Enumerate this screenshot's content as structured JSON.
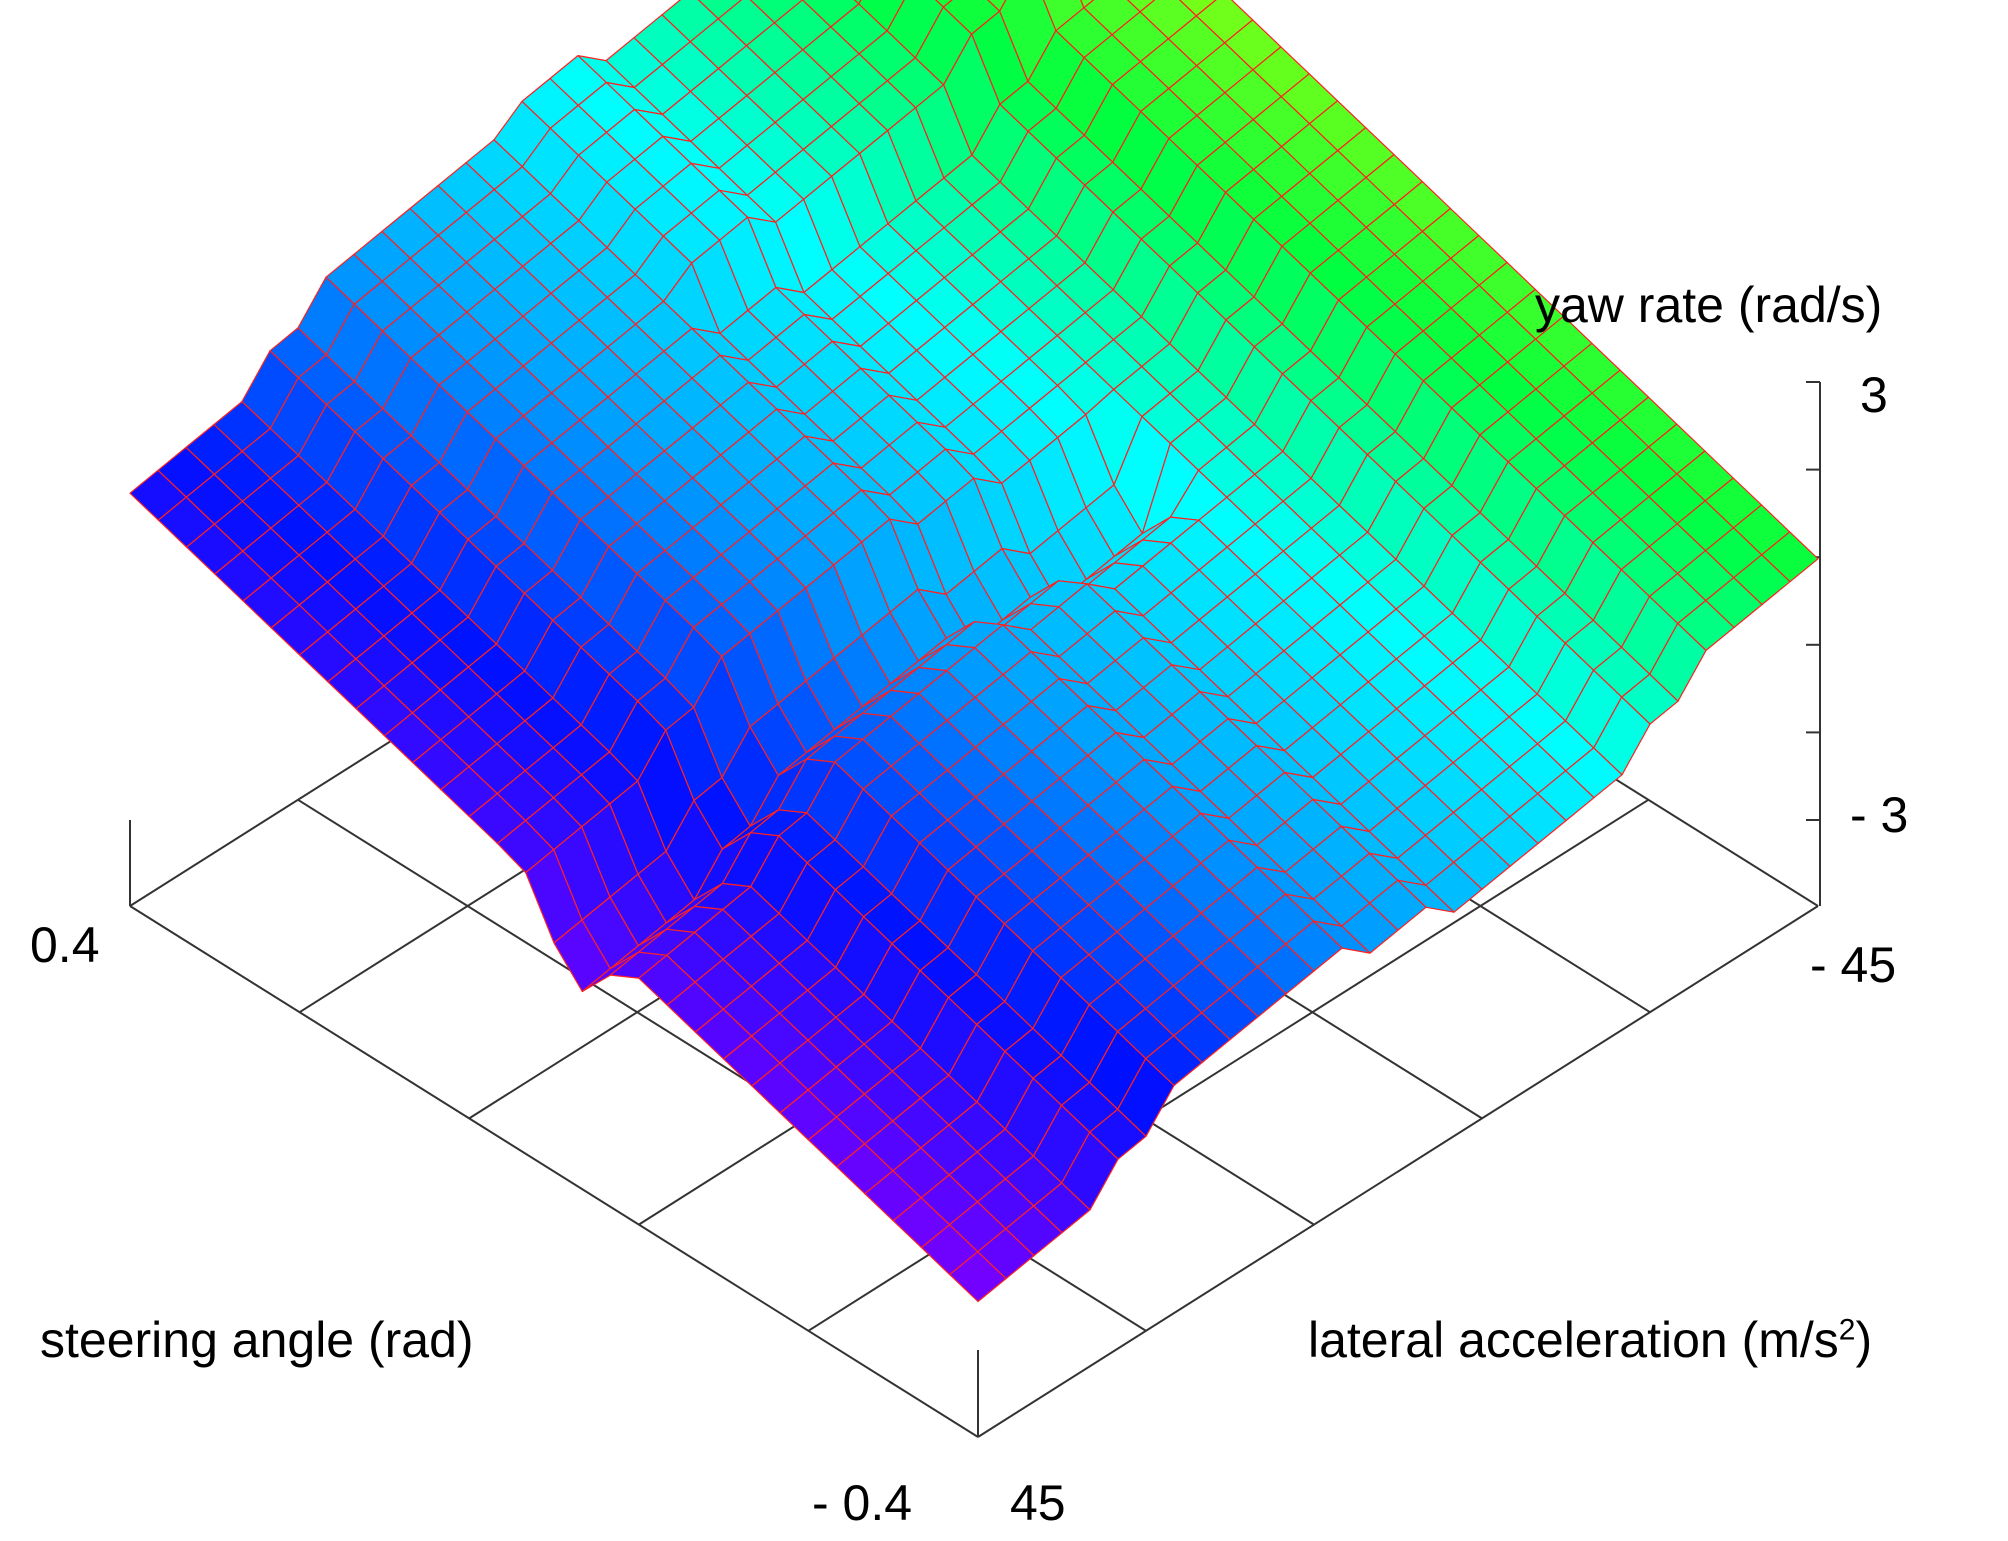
{
  "chart_data": {
    "type": "surface3d",
    "title": "",
    "xlabel": "steering angle (rad)",
    "ylabel_main": "lateral acceleration (m/s",
    "ylabel_sup": "2",
    "ylabel_close": ")",
    "zlabel": "yaw rate (rad/s)",
    "x_ticks": {
      "min_label": "- 0.4",
      "max_label": "0.4"
    },
    "y_ticks": {
      "min_label": "- 45",
      "max_label": "45"
    },
    "z_ticks": {
      "min_label": "- 3",
      "max_label": "3"
    },
    "xlim": [
      -0.4,
      0.4
    ],
    "ylim": [
      -45,
      45
    ],
    "zlim": [
      -3,
      3
    ],
    "floor_grid_divisions": 5,
    "grid_resolution": [
      30,
      30
    ],
    "mesh_color": "#ff2020",
    "colormap": [
      "#7a00ff",
      "#0010ff",
      "#00a0ff",
      "#00ffff",
      "#00ff40",
      "#c0ff00"
    ],
    "surface_model": "yaw rate rises with steering angle, saturating in stepped bands; ridges along lateral-acceleration direction"
  }
}
